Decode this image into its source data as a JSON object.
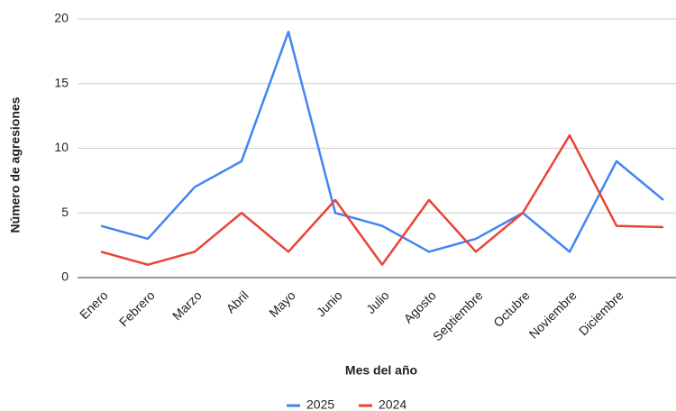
{
  "chart_data": {
    "type": "line",
    "x_label": "Mes del año",
    "y_label": "Número de agresiones",
    "categories": [
      "Enero",
      "Febrero",
      "Marzo",
      "Abril",
      "Mayo",
      "Junio",
      "Julio",
      "Agosto",
      "Septiembre",
      "Octubre",
      "Noviembre",
      "Diciembre",
      null
    ],
    "series": [
      {
        "name": "2025",
        "color": "#4285f4",
        "values": [
          4,
          3,
          7,
          9,
          19,
          5,
          4,
          2,
          3,
          5,
          2,
          9,
          6
        ]
      },
      {
        "name": "2024",
        "color": "#ea4335",
        "values": [
          2,
          1,
          2,
          5,
          2,
          6,
          1,
          6,
          2,
          5,
          11,
          4,
          3.9
        ]
      }
    ],
    "ylim": [
      0,
      20
    ],
    "yticks": [
      0,
      5,
      10,
      15,
      20
    ],
    "grid": true,
    "legend": "bottom"
  }
}
